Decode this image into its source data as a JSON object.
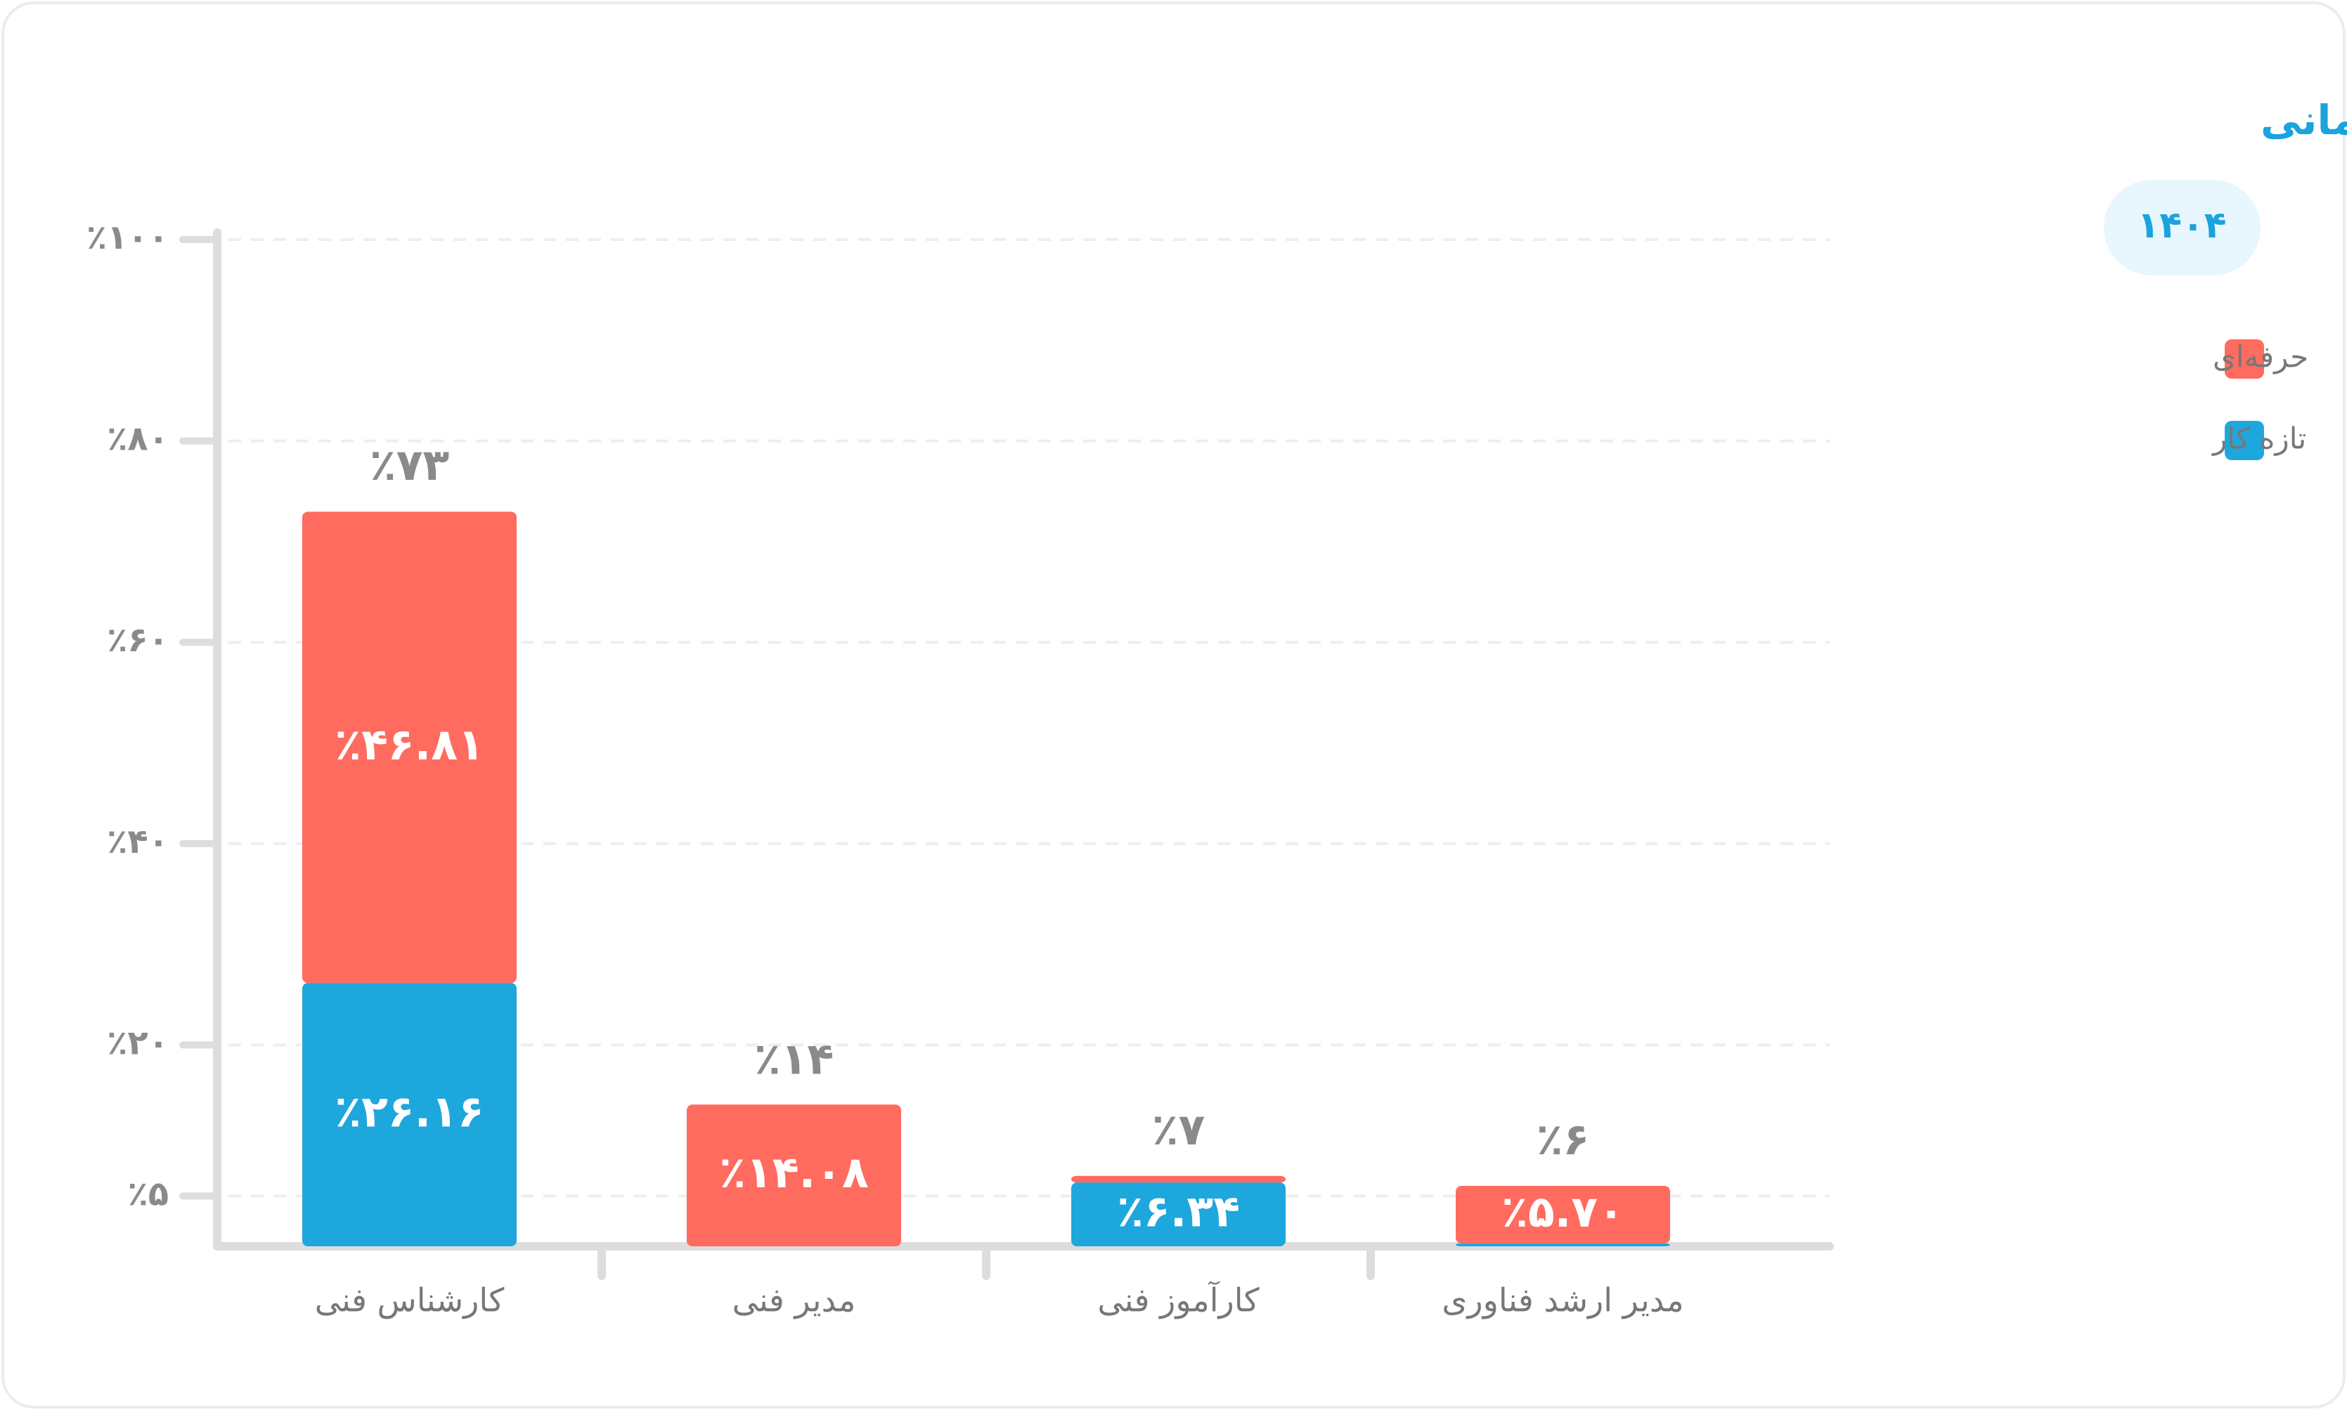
{
  "chart_data": {
    "type": "stacked_bar",
    "title": "وضعیت ساختار سازمانی",
    "categories": [
      "کارشناس فنی",
      "مدیر فنی",
      "کارآموز فنی",
      "مدیر ارشد فناوری"
    ],
    "series": [
      {
        "name": "تازه کار",
        "color": "#1ea7dc",
        "values": [
          26.16,
          0,
          6.34,
          0.3
        ],
        "value_labels": [
          "٪۲۶.۱۶",
          null,
          "٪۶.۳۴",
          null
        ]
      },
      {
        "name": "حرفه‌ای",
        "color": "#ff6b5e",
        "values": [
          46.81,
          14.08,
          0.66,
          5.7
        ],
        "value_labels": [
          "٪۴۶.۸۱",
          "٪۱۴.۰۸",
          null,
          "٪۵.۷۰"
        ]
      }
    ],
    "totals": [
      73,
      14,
      7,
      6
    ],
    "total_labels": [
      "٪۷۳",
      "٪۱۴",
      "٪۷",
      "٪۶"
    ],
    "ylim": [
      0,
      100
    ],
    "yticks": [
      {
        "value": 100,
        "label": "٪۱۰۰"
      },
      {
        "value": 80,
        "label": "٪۸۰"
      },
      {
        "value": 60,
        "label": "٪۶۰"
      },
      {
        "value": 40,
        "label": "٪۴۰"
      },
      {
        "value": 20,
        "label": "٪۲۰"
      },
      {
        "value": 5,
        "label": "٪۵"
      }
    ],
    "grid": true,
    "legend": "top-right"
  },
  "year_filter": "۱۴۰۴"
}
